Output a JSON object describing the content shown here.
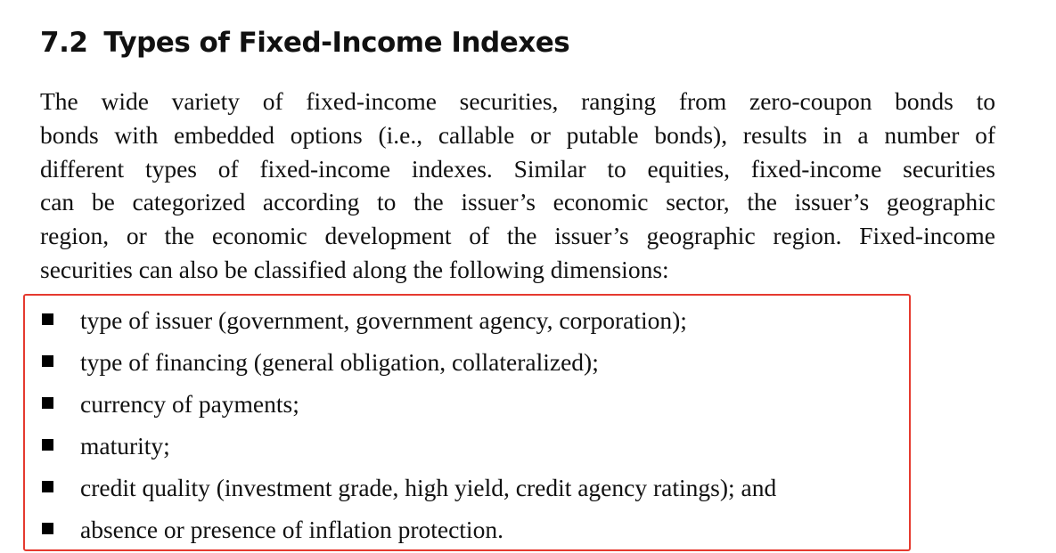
{
  "heading": {
    "number": "7.2",
    "title": "Types of Fixed-Income Indexes"
  },
  "paragraph_lines": [
    "The wide variety of fixed-income securities, ranging from zero-coupon bonds to",
    "bonds with embedded options (i.e., callable or putable bonds), results in a number of",
    "different types of fixed-income indexes. Similar to equities, fixed-income securities",
    "can be categorized according to the issuer’s economic sector, the issuer’s geographic",
    "region, or the economic development of the issuer’s geographic region. Fixed-income",
    "securities can also be classified along the following dimensions:"
  ],
  "bullets": [
    "type of issuer (government, government agency, corporation);",
    "type of financing (general obligation, collateralized);",
    "currency of payments;",
    "maturity;",
    "credit quality (investment grade, high yield, credit agency ratings); and",
    "absence or presence of inflation protection."
  ],
  "colors": {
    "highlight_box": "#e53a2f",
    "bullet": "#000000"
  }
}
